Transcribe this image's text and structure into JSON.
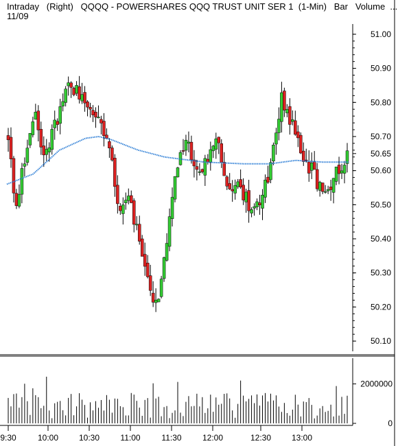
{
  "header": {
    "line1": "Intraday   (Right)   QQQQ - POWERSHARES QQQ TRUST UNIT SER 1  (1-Min)   Bar   Volume  ...",
    "line2": "11/09"
  },
  "colors": {
    "up": "#33cc33",
    "down": "#dd2222",
    "average": "#2f7fd6",
    "volume": "#000000",
    "background": "#ffffff",
    "axis": "#000000"
  },
  "chart_data": [
    {
      "type": "candlestick",
      "title": "Intraday (Right) QQQQ - POWERSHARES QQQ TRUST UNIT SER 1 (1-Min) Bar Volume",
      "date": "11/09",
      "y_ticks": [
        "51.00",
        "50.90",
        "50.80",
        "50.70",
        "50.65",
        "50.60",
        "50.50",
        "50.40",
        "50.30",
        "50.20",
        "50.10"
      ],
      "ylim": [
        50.07,
        51.03
      ],
      "x_ticks": [
        "9:30",
        "10:00",
        "10:30",
        "11:00",
        "11:30",
        "12:00",
        "12:30",
        "13:00"
      ],
      "grid": false,
      "price_anchors": [
        [
          0,
          50.7
        ],
        [
          3,
          50.48
        ],
        [
          6,
          50.62
        ],
        [
          10,
          50.78
        ],
        [
          14,
          50.64
        ],
        [
          18,
          50.74
        ],
        [
          22,
          50.85
        ],
        [
          26,
          50.84
        ],
        [
          30,
          50.8
        ],
        [
          34,
          50.74
        ],
        [
          38,
          50.68
        ],
        [
          42,
          50.5
        ],
        [
          46,
          50.52
        ],
        [
          50,
          50.38
        ],
        [
          54,
          50.25
        ],
        [
          57,
          50.2
        ],
        [
          60,
          50.38
        ],
        [
          64,
          50.6
        ],
        [
          68,
          50.7
        ],
        [
          72,
          50.58
        ],
        [
          76,
          50.64
        ],
        [
          80,
          50.68
        ],
        [
          84,
          50.55
        ],
        [
          88,
          50.55
        ],
        [
          92,
          50.5
        ],
        [
          96,
          50.52
        ],
        [
          100,
          50.62
        ],
        [
          104,
          50.82
        ],
        [
          108,
          50.74
        ],
        [
          112,
          50.64
        ],
        [
          116,
          50.6
        ],
        [
          120,
          50.52
        ],
        [
          124,
          50.58
        ],
        [
          128,
          50.64
        ],
        [
          130,
          50.66
        ]
      ],
      "moving_average": [
        [
          0,
          50.56
        ],
        [
          10,
          50.59
        ],
        [
          20,
          50.66
        ],
        [
          30,
          50.695
        ],
        [
          35,
          50.7
        ],
        [
          40,
          50.69
        ],
        [
          50,
          50.66
        ],
        [
          60,
          50.64
        ],
        [
          75,
          50.625
        ],
        [
          90,
          50.62
        ],
        [
          100,
          50.62
        ],
        [
          110,
          50.63
        ],
        [
          120,
          50.625
        ],
        [
          130,
          50.625
        ]
      ]
    },
    {
      "type": "bar",
      "title": "Volume",
      "y_ticks": [
        "2000000",
        "0"
      ],
      "ylim": [
        0,
        3200000
      ]
    }
  ]
}
